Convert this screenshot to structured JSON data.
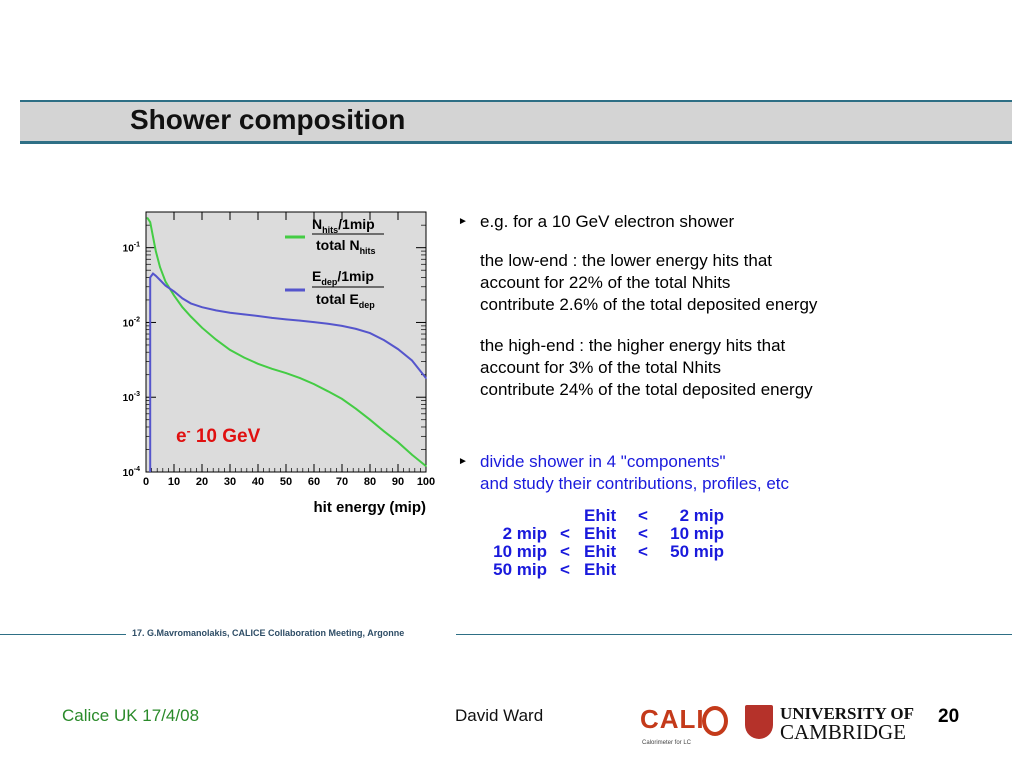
{
  "slide": {
    "title": "Shower composition",
    "bullets": [
      {
        "marker": "►",
        "text": "e.g. for a 10 GeV electron shower"
      },
      {
        "marker": "►",
        "text": "divide shower in 4 \"components\""
      }
    ],
    "low_end": [
      "the low-end : the lower energy hits that",
      "account for 22% of the total Nhits",
      "contribute 2.6% of the total deposited energy"
    ],
    "high_end": [
      "the high-end : the higher energy hits that",
      "account for 3% of the total Nhits",
      "contribute 24% of the total deposited energy"
    ],
    "bullet2_cont": "and study their contributions, profiles, etc",
    "components": [
      {
        "lo": "",
        "lt1": "",
        "e": "Ehit",
        "lt2": "<",
        "hi": "2 mip"
      },
      {
        "lo": "2 mip",
        "lt1": "<",
        "e": "Ehit",
        "lt2": "<",
        "hi": "10 mip"
      },
      {
        "lo": "10 mip",
        "lt1": "<",
        "e": "Ehit",
        "lt2": "<",
        "hi": "50 mip"
      },
      {
        "lo": "50 mip",
        "lt1": "<",
        "e": "Ehit",
        "lt2": "",
        "hi": ""
      }
    ]
  },
  "footer": {
    "note": "17. G.Mavromanolakis, CALICE Collaboration Meeting, Argonne",
    "left": "Calice UK 17/4/08",
    "center": "David Ward",
    "page": "20",
    "calice_logo_text": "CALI",
    "calice_logo_sub": "Calorimeter for LC",
    "cambridge_line1": "UNIVERSITY OF",
    "cambridge_line2": "CAMBRIDGE"
  },
  "chart_data": {
    "type": "line",
    "xlabel": "hit energy (mip)",
    "ylabel": "",
    "xlim": [
      0,
      100
    ],
    "ylim": [
      0.0001,
      0.3
    ],
    "y_scale": "log",
    "x_ticks": [
      "0",
      "10",
      "20",
      "30",
      "40",
      "50",
      "60",
      "70",
      "80",
      "90",
      "100"
    ],
    "y_ticks": [
      {
        "value": 0.1,
        "base": "10",
        "exp": "-1"
      },
      {
        "value": 0.01,
        "base": "10",
        "exp": "-2"
      },
      {
        "value": 0.001,
        "base": "10",
        "exp": "-3"
      },
      {
        "value": 0.0001,
        "base": "10",
        "exp": "-4"
      }
    ],
    "annotation": {
      "base": "e",
      "sup": "-",
      "rest": " 10 GeV",
      "color": "#e01010"
    },
    "background": "#dcdcdc",
    "legend_position": "top-right",
    "series": [
      {
        "name_num": "N",
        "name_num_sub": "hits",
        "name_num_rest": "/1mip",
        "name_den": "total N",
        "name_den_sub": "hits",
        "color": "#44cc44",
        "x": [
          0.5,
          1.5,
          2.5,
          3.5,
          5,
          7,
          10,
          13,
          16,
          20,
          25,
          30,
          35,
          40,
          45,
          50,
          55,
          60,
          65,
          70,
          75,
          80,
          85,
          90,
          95,
          100
        ],
        "y": [
          0.25,
          0.22,
          0.14,
          0.09,
          0.055,
          0.035,
          0.023,
          0.016,
          0.012,
          0.0085,
          0.0059,
          0.0043,
          0.0034,
          0.0028,
          0.0024,
          0.0021,
          0.0018,
          0.0015,
          0.0012,
          0.00095,
          0.0007,
          0.0005,
          0.00035,
          0.00025,
          0.00017,
          0.00012
        ]
      },
      {
        "name_num": "E",
        "name_num_sub": "dep",
        "name_num_rest": "/1mip",
        "name_den": "total E",
        "name_den_sub": "dep",
        "color": "#5555cc",
        "x": [
          0.5,
          1.5,
          2.5,
          3.5,
          5,
          7,
          10,
          13,
          16,
          20,
          25,
          30,
          35,
          40,
          45,
          50,
          55,
          60,
          65,
          70,
          75,
          80,
          85,
          90,
          95,
          100
        ],
        "y": [
          0.0,
          0.04,
          0.045,
          0.042,
          0.037,
          0.031,
          0.026,
          0.021,
          0.018,
          0.016,
          0.0145,
          0.0135,
          0.0128,
          0.0122,
          0.0115,
          0.011,
          0.0106,
          0.0101,
          0.0096,
          0.009,
          0.0082,
          0.0072,
          0.0058,
          0.0044,
          0.0031,
          0.0018
        ]
      }
    ]
  }
}
